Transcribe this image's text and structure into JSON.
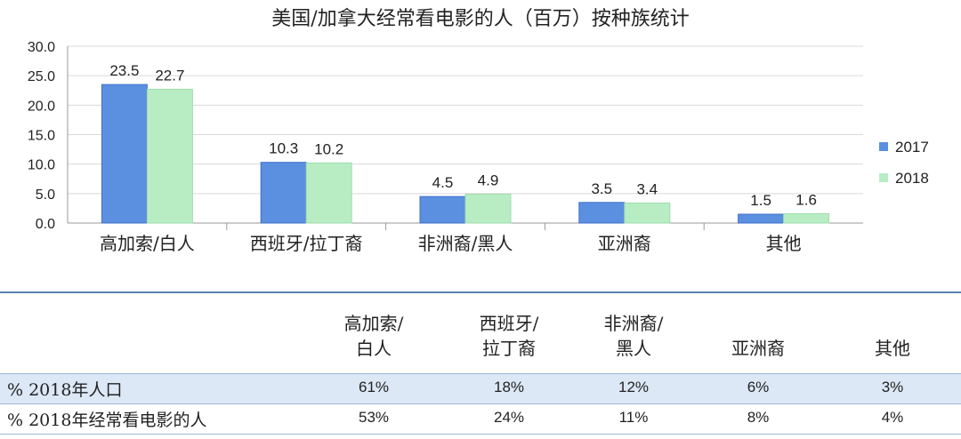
{
  "chart_data": {
    "type": "bar",
    "title": "美国/加拿大经常看电影的人（百万）按种族统计",
    "categories": [
      "高加索/白人",
      "西班牙/拉丁裔",
      "非洲裔/黑人",
      "亚洲裔",
      "其他"
    ],
    "series": [
      {
        "name": "2017",
        "values": [
          23.5,
          10.3,
          4.5,
          3.5,
          1.5
        ],
        "color": "#5b8fe0"
      },
      {
        "name": "2018",
        "values": [
          22.7,
          10.2,
          4.9,
          3.4,
          1.6
        ],
        "color": "#b8edc4"
      }
    ],
    "value_labels": {
      "2017": [
        "23.5",
        "10.3",
        "4.5",
        "3.5",
        "1.5"
      ],
      "2018": [
        "22.7",
        "10.2",
        "4.9",
        "3.4",
        "1.6"
      ]
    },
    "ylim": [
      0,
      30
    ],
    "yticks": [
      "0.0",
      "5.0",
      "10.0",
      "15.0",
      "20.0",
      "25.0",
      "30.0"
    ],
    "grid": true,
    "legend": "right"
  },
  "table": {
    "headers": [
      [
        "高加索/",
        "白人"
      ],
      [
        "西班牙/",
        "拉丁裔"
      ],
      [
        "非洲裔/",
        "黑人"
      ],
      [
        "亚洲裔"
      ],
      [
        "其他"
      ]
    ],
    "rows": [
      {
        "label": "% 2018年人口",
        "values": [
          "61%",
          "18%",
          "12%",
          "6%",
          "3%"
        ]
      },
      {
        "label": "% 2018年经常看电影的人",
        "values": [
          "53%",
          "24%",
          "11%",
          "8%",
          "4%"
        ]
      }
    ]
  }
}
